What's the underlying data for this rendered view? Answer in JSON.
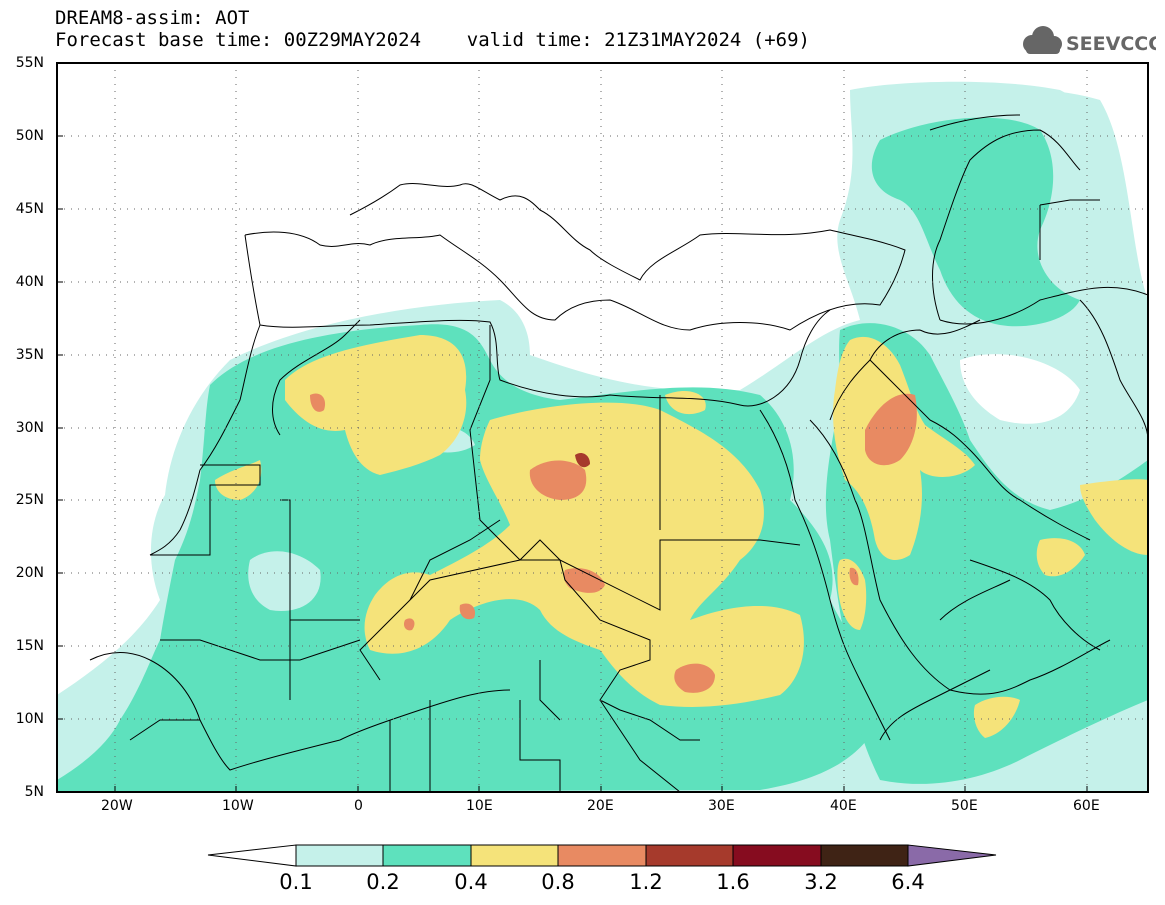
{
  "title": {
    "line1": "DREAM8-assim: AOT",
    "line2": "Forecast base time: 00Z29MAY2024    valid time: 21Z31MAY2024 (+69)"
  },
  "logo": {
    "text": "SEEVCCC",
    "icon": "cloud-icon"
  },
  "map": {
    "lon_range": [
      -25,
      65
    ],
    "lat_range": [
      5,
      55
    ],
    "lat_labels": [
      "55N",
      "50N",
      "45N",
      "40N",
      "35N",
      "30N",
      "25N",
      "20N",
      "15N",
      "10N",
      "5N"
    ],
    "lon_labels": [
      "20W",
      "10W",
      "0",
      "10E",
      "20E",
      "30E",
      "40E",
      "50E",
      "60E"
    ]
  },
  "colorbar": {
    "colors": [
      "#ffffff",
      "#c5f1ea",
      "#5ee1bd",
      "#f5e37a",
      "#e88a62",
      "#a63a2c",
      "#860c1f",
      "#3f2315",
      "#8a6aa8"
    ],
    "labels": [
      "0.1",
      "0.2",
      "0.4",
      "0.8",
      "1.2",
      "1.6",
      "3.2",
      "6.4"
    ]
  }
}
